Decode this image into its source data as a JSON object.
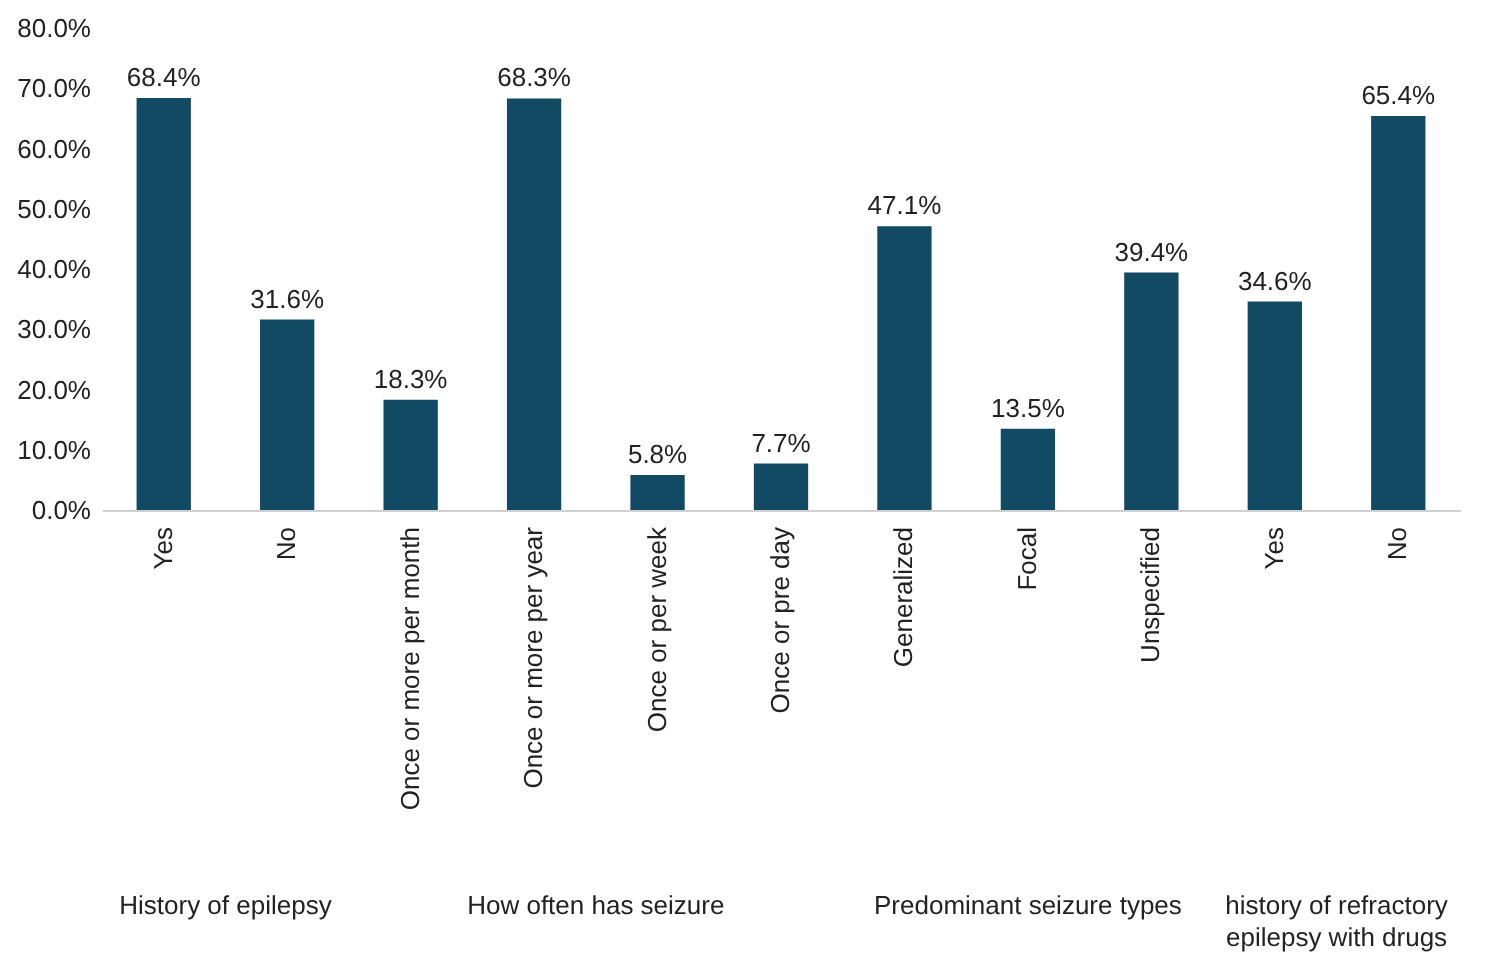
{
  "chart_data": {
    "type": "bar",
    "categories": [
      "Yes",
      "No",
      "Once or more per month",
      "Once or more per year",
      "Once or per week",
      "Once or pre day",
      "Generalized",
      "Focal",
      "Unspecified",
      "Yes",
      "No"
    ],
    "values": [
      68.4,
      31.6,
      18.3,
      68.3,
      5.8,
      7.7,
      47.1,
      13.5,
      39.4,
      34.6,
      65.4
    ],
    "value_labels": [
      "68.4%",
      "31.6%",
      "18.3%",
      "68.3%",
      "5.8%",
      "7.7%",
      "47.1%",
      "13.5%",
      "39.4%",
      "34.6%",
      "65.4%"
    ],
    "color": "#134a63",
    "ylim": [
      0,
      80
    ],
    "yticks": [
      {
        "value": 0,
        "label": "0.0%"
      },
      {
        "value": 10,
        "label": "10.0%"
      },
      {
        "value": 20,
        "label": "20.0%"
      },
      {
        "value": 30,
        "label": "30.0%"
      },
      {
        "value": 40,
        "label": "40.0%"
      },
      {
        "value": 50,
        "label": "50.0%"
      },
      {
        "value": 60,
        "label": "60.0%"
      },
      {
        "value": 70,
        "label": "70.0%"
      },
      {
        "value": 80,
        "label": "80.0%"
      }
    ],
    "annotations": [
      "History of epilepsy",
      "How often has seizure",
      "Predominant seizure types",
      "history of refractory epilepsy with drugs"
    ],
    "grid": false
  }
}
